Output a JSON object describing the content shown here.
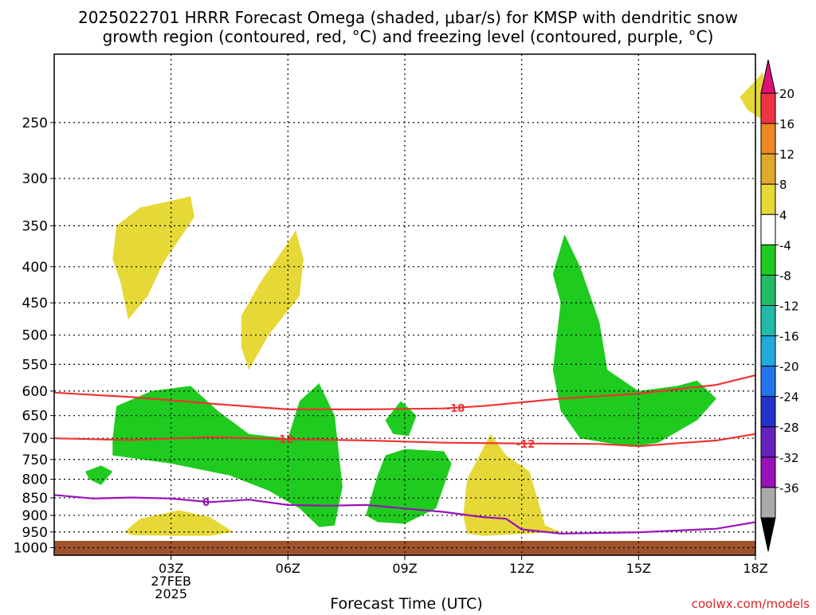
{
  "title_line1": "2025022701 HRRR Forecast Omega (shaded, μbar/s) for KMSP with dendritic snow",
  "title_line2": "growth region (contoured, red, °C) and freezing level (contoured, purple, °C)",
  "watermark": "coolwx.com/models",
  "chart_data": {
    "type": "heatmap",
    "title": "2025022701 HRRR Forecast Omega (shaded, μbar/s) for KMSP with dendritic snow growth region (contoured, red, °C) and freezing level (contoured, purple, °C)",
    "xlabel": "Forecast Time (UTC)",
    "ylabel": "",
    "x_range_hours": [
      0,
      18
    ],
    "y_range_hpa": [
      1025,
      200
    ],
    "y_scale": "log-pressure",
    "grid": true,
    "x_ticks": [
      {
        "hour": 3,
        "label": "03Z",
        "sub1": "27FEB",
        "sub2": "2025"
      },
      {
        "hour": 6,
        "label": "06Z",
        "sub1": "",
        "sub2": ""
      },
      {
        "hour": 9,
        "label": "09Z",
        "sub1": "",
        "sub2": ""
      },
      {
        "hour": 12,
        "label": "12Z",
        "sub1": "",
        "sub2": ""
      },
      {
        "hour": 15,
        "label": "15Z",
        "sub1": "",
        "sub2": ""
      },
      {
        "hour": 18,
        "label": "18Z",
        "sub1": "",
        "sub2": ""
      }
    ],
    "y_ticks": [
      250,
      300,
      350,
      400,
      450,
      500,
      550,
      600,
      650,
      700,
      750,
      800,
      850,
      900,
      950,
      1000
    ],
    "colorbar": {
      "labels": [
        "20",
        "16",
        "12",
        "8",
        "4",
        "-4",
        "-8",
        "-12",
        "-16",
        "-20",
        "-24",
        "-28",
        "-32",
        "-36"
      ],
      "bins": [
        {
          "color": "#ee3344"
        },
        {
          "color": "#ee8822"
        },
        {
          "color": "#e0a82c"
        },
        {
          "color": "#e6d836"
        },
        {
          "color": "#ffffff"
        },
        {
          "color": "#1ecb1e"
        },
        {
          "color": "#22bb66"
        },
        {
          "color": "#22bbaa"
        },
        {
          "color": "#22aadd"
        },
        {
          "color": "#2277ee"
        },
        {
          "color": "#2233cc"
        },
        {
          "color": "#6622bb"
        },
        {
          "color": "#9911bb"
        },
        {
          "color": "#aaaaaa"
        }
      ],
      "top_color": "#dd1177",
      "bottom_color": "#000000"
    },
    "omega_regions": [
      {
        "color": "#e6d836",
        "points": [
          [
            1.5,
            390
          ],
          [
            1.6,
            350
          ],
          [
            2.2,
            330
          ],
          [
            3.5,
            318
          ],
          [
            3.6,
            340
          ],
          [
            2.8,
            395
          ],
          [
            2.4,
            440
          ],
          [
            1.9,
            475
          ],
          [
            1.7,
            420
          ]
        ]
      },
      {
        "color": "#e6d836",
        "points": [
          [
            4.8,
            470
          ],
          [
            5.3,
            420
          ],
          [
            6.0,
            370
          ],
          [
            6.2,
            355
          ],
          [
            6.4,
            390
          ],
          [
            6.3,
            440
          ],
          [
            5.5,
            500
          ],
          [
            5.0,
            560
          ],
          [
            4.8,
            520
          ]
        ]
      },
      {
        "color": "#e6d836",
        "points": [
          [
            17.6,
            230
          ],
          [
            18.0,
            218
          ],
          [
            18.2,
            212
          ],
          [
            18.2,
            248
          ],
          [
            17.8,
            240
          ]
        ]
      },
      {
        "color": "#e6d836",
        "points": [
          [
            1.8,
            950
          ],
          [
            2.2,
            910
          ],
          [
            3.2,
            885
          ],
          [
            4.0,
            905
          ],
          [
            4.6,
            950
          ],
          [
            4.0,
            962
          ],
          [
            3.0,
            962
          ],
          [
            2.0,
            960
          ]
        ]
      },
      {
        "color": "#e6d836",
        "points": [
          [
            10.5,
            900
          ],
          [
            10.6,
            800
          ],
          [
            11.2,
            690
          ],
          [
            11.6,
            740
          ],
          [
            12.2,
            780
          ],
          [
            12.4,
            850
          ],
          [
            12.6,
            930
          ],
          [
            13.0,
            950
          ],
          [
            11.0,
            962
          ],
          [
            10.6,
            955
          ]
        ]
      },
      {
        "color": "#1ecb1e",
        "points": [
          [
            1.5,
            700
          ],
          [
            1.6,
            630
          ],
          [
            2.5,
            600
          ],
          [
            3.5,
            590
          ],
          [
            4.2,
            640
          ],
          [
            5.0,
            690
          ],
          [
            6.0,
            700
          ],
          [
            6.3,
            620
          ],
          [
            6.8,
            585
          ],
          [
            7.2,
            650
          ],
          [
            7.4,
            820
          ],
          [
            7.2,
            930
          ],
          [
            6.8,
            935
          ],
          [
            6.3,
            880
          ],
          [
            5.5,
            830
          ],
          [
            4.5,
            790
          ],
          [
            3.0,
            760
          ],
          [
            1.5,
            740
          ]
        ]
      },
      {
        "color": "#1ecb1e",
        "points": [
          [
            0.8,
            780
          ],
          [
            1.2,
            765
          ],
          [
            1.5,
            780
          ],
          [
            1.2,
            815
          ],
          [
            0.9,
            800
          ]
        ]
      },
      {
        "color": "#1ecb1e",
        "points": [
          [
            8.0,
            900
          ],
          [
            8.3,
            790
          ],
          [
            8.5,
            740
          ],
          [
            9.0,
            725
          ],
          [
            10.0,
            730
          ],
          [
            10.2,
            760
          ],
          [
            9.8,
            880
          ],
          [
            9.0,
            925
          ],
          [
            8.3,
            920
          ]
        ]
      },
      {
        "color": "#1ecb1e",
        "points": [
          [
            8.5,
            660
          ],
          [
            8.9,
            620
          ],
          [
            9.3,
            650
          ],
          [
            9.1,
            695
          ],
          [
            8.7,
            690
          ]
        ]
      },
      {
        "color": "#1ecb1e",
        "points": [
          [
            12.8,
            410
          ],
          [
            13.1,
            360
          ],
          [
            13.5,
            400
          ],
          [
            14.0,
            480
          ],
          [
            14.2,
            560
          ],
          [
            15.0,
            600
          ],
          [
            16.0,
            590
          ],
          [
            16.5,
            580
          ],
          [
            17.0,
            615
          ],
          [
            16.5,
            660
          ],
          [
            15.5,
            710
          ],
          [
            14.8,
            720
          ],
          [
            13.5,
            700
          ],
          [
            13.0,
            640
          ],
          [
            12.8,
            560
          ],
          [
            13.0,
            450
          ]
        ]
      }
    ],
    "contours": [
      {
        "label": "-18",
        "color": "#ee3333",
        "label_hour": 10.3,
        "points": [
          [
            0,
            603
          ],
          [
            2,
            612
          ],
          [
            4,
            625
          ],
          [
            6,
            637
          ],
          [
            8,
            637
          ],
          [
            10,
            635
          ],
          [
            11,
            630
          ],
          [
            13,
            615
          ],
          [
            15,
            605
          ],
          [
            17,
            588
          ],
          [
            18,
            570
          ]
        ]
      },
      {
        "label": "-12",
        "color": "#ee3333",
        "label_hour": 5.9,
        "label_hour_2": 12.1,
        "points": [
          [
            0,
            700
          ],
          [
            2,
            704
          ],
          [
            4,
            697
          ],
          [
            6,
            702
          ],
          [
            8,
            705
          ],
          [
            10,
            710
          ],
          [
            12,
            712
          ],
          [
            14,
            713
          ],
          [
            15,
            718
          ],
          [
            17,
            705
          ],
          [
            18,
            690
          ]
        ]
      },
      {
        "label": "0",
        "color": "#9911bb",
        "label_hour": 3.9,
        "points": [
          [
            0,
            842
          ],
          [
            1,
            852
          ],
          [
            2,
            849
          ],
          [
            3,
            852
          ],
          [
            4,
            862
          ],
          [
            5,
            855
          ],
          [
            6,
            870
          ],
          [
            7,
            872
          ],
          [
            8,
            870
          ],
          [
            9,
            880
          ],
          [
            10,
            890
          ],
          [
            11,
            905
          ],
          [
            11.6,
            910
          ],
          [
            12,
            942
          ],
          [
            13,
            955
          ],
          [
            15,
            951
          ],
          [
            17,
            940
          ],
          [
            18,
            920
          ]
        ]
      }
    ]
  }
}
